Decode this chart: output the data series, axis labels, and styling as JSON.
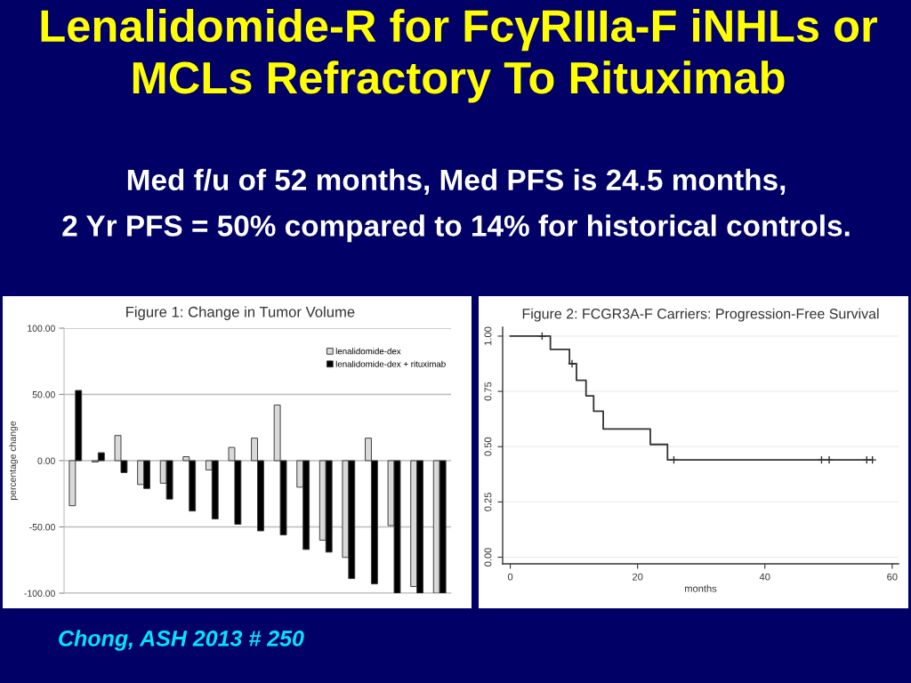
{
  "chart_data": [
    {
      "type": "other",
      "title": "Lenalidomide-R for FcγRIIIa-F iNHLs or\nMCLs Refractory To Rituximab",
      "subtitle": "Med f/u of 52 months, Med PFS is 24.5 months,\n2 Yr PFS = 50% compared to 14% for historical controls.",
      "annotations": [
        "Chong, ASH 2013 # 250"
      ]
    },
    {
      "type": "bar",
      "title": "Figure 1: Change in Tumor Volume",
      "ylabel": "percentage change",
      "categories": [
        null,
        null,
        null,
        null,
        null,
        null,
        null,
        null,
        null,
        null,
        null,
        null,
        null,
        null,
        null,
        null,
        null
      ],
      "series": [
        {
          "name": "lenalidomide-dex",
          "color": "#d9d9d9",
          "values": [
            -34,
            -1,
            19,
            -18,
            -17,
            3,
            -7,
            10,
            17,
            42,
            -20,
            -60,
            -73,
            17,
            -49,
            -95,
            -100
          ]
        },
        {
          "name": "lenalidomide-dex + rituximab",
          "color": "#000000",
          "values": [
            53,
            6,
            -9,
            -21,
            -29,
            -38,
            -44,
            -48,
            -53,
            -56,
            -67,
            -69,
            -89,
            -93,
            -100,
            -100,
            -100
          ]
        }
      ],
      "ylim": [
        -100,
        100
      ],
      "yticks": [
        {
          "value": 100,
          "label": "100.00"
        },
        {
          "value": 50,
          "label": "50.00"
        },
        {
          "value": 0,
          "label": "0.00"
        },
        {
          "value": -50,
          "label": "-50.00"
        },
        {
          "value": -100,
          "label": "-100.00"
        }
      ],
      "grid": "y",
      "legend": "top right",
      "tick_labels": "y"
    },
    {
      "type": "step",
      "title": "Figure 2: FCGR3A-F Carriers: Progression-Free Survival",
      "xlabel": "months",
      "series": [
        {
          "type": "step",
          "color": "#333333",
          "x": [
            0,
            6.3,
            9.3,
            10.4,
            11.9,
            13.1,
            14.6,
            22.0,
            24.7,
            56.9
          ],
          "values": [
            1.0,
            0.94,
            0.875,
            0.8,
            0.73,
            0.66,
            0.58,
            0.51,
            0.44,
            0.44
          ]
        },
        {
          "type": "scatter",
          "color": "#333333",
          "marker": "cross",
          "x": [
            5.0,
            9.7,
            25.7,
            48.9,
            50.1,
            56.0,
            56.9
          ],
          "values": [
            1.0,
            0.875,
            0.44,
            0.44,
            0.44,
            0.44,
            0.44
          ]
        }
      ],
      "xlim": [
        -1.2,
        61
      ],
      "ylim": [
        -0.03,
        1.04
      ],
      "xticks": [
        0,
        20,
        40,
        60
      ],
      "yticks": [
        {
          "value": 0,
          "label": "0.00"
        },
        {
          "value": 0.25,
          "label": "0.25"
        },
        {
          "value": 0.5,
          "label": "0.50"
        },
        {
          "value": 0.75,
          "label": "0.75"
        },
        {
          "value": 1.0,
          "label": "1.00"
        }
      ],
      "grid": "y"
    }
  ]
}
